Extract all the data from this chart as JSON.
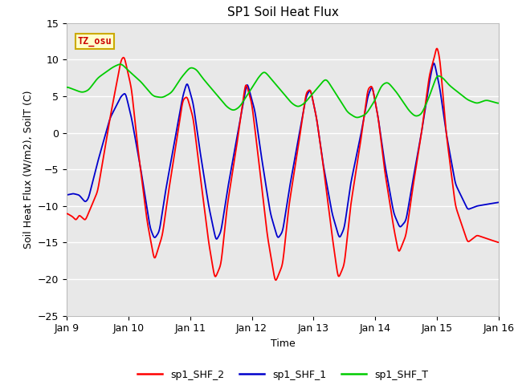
{
  "title": "SP1 Soil Heat Flux",
  "xlabel": "Time",
  "ylabel": "Soil Heat Flux (W/m2), SoilT (C)",
  "ylim": [
    -25,
    15
  ],
  "yticks": [
    -25,
    -20,
    -15,
    -10,
    -5,
    0,
    5,
    10,
    15
  ],
  "xlim_days": [
    0,
    7
  ],
  "xtick_labels": [
    "Jan 9",
    "Jan 10",
    "Jan 11",
    "Jan 12",
    "Jan 13",
    "Jan 14",
    "Jan 15",
    "Jan 16"
  ],
  "xtick_positions": [
    0,
    1,
    2,
    3,
    4,
    5,
    6,
    7
  ],
  "bg_color": "#e8e8e8",
  "fig_bg_color": "#ffffff",
  "grid_color": "#ffffff",
  "line_colors": {
    "sp1_SHF_2": "#ff0000",
    "sp1_SHF_1": "#0000cc",
    "sp1_SHF_T": "#00cc00"
  },
  "legend_labels": [
    "sp1_SHF_2",
    "sp1_SHF_1",
    "sp1_SHF_T"
  ],
  "tz_label": "TZ_osu",
  "tz_bg": "#ffffcc",
  "tz_border": "#ccaa00",
  "linewidth": 1.3
}
